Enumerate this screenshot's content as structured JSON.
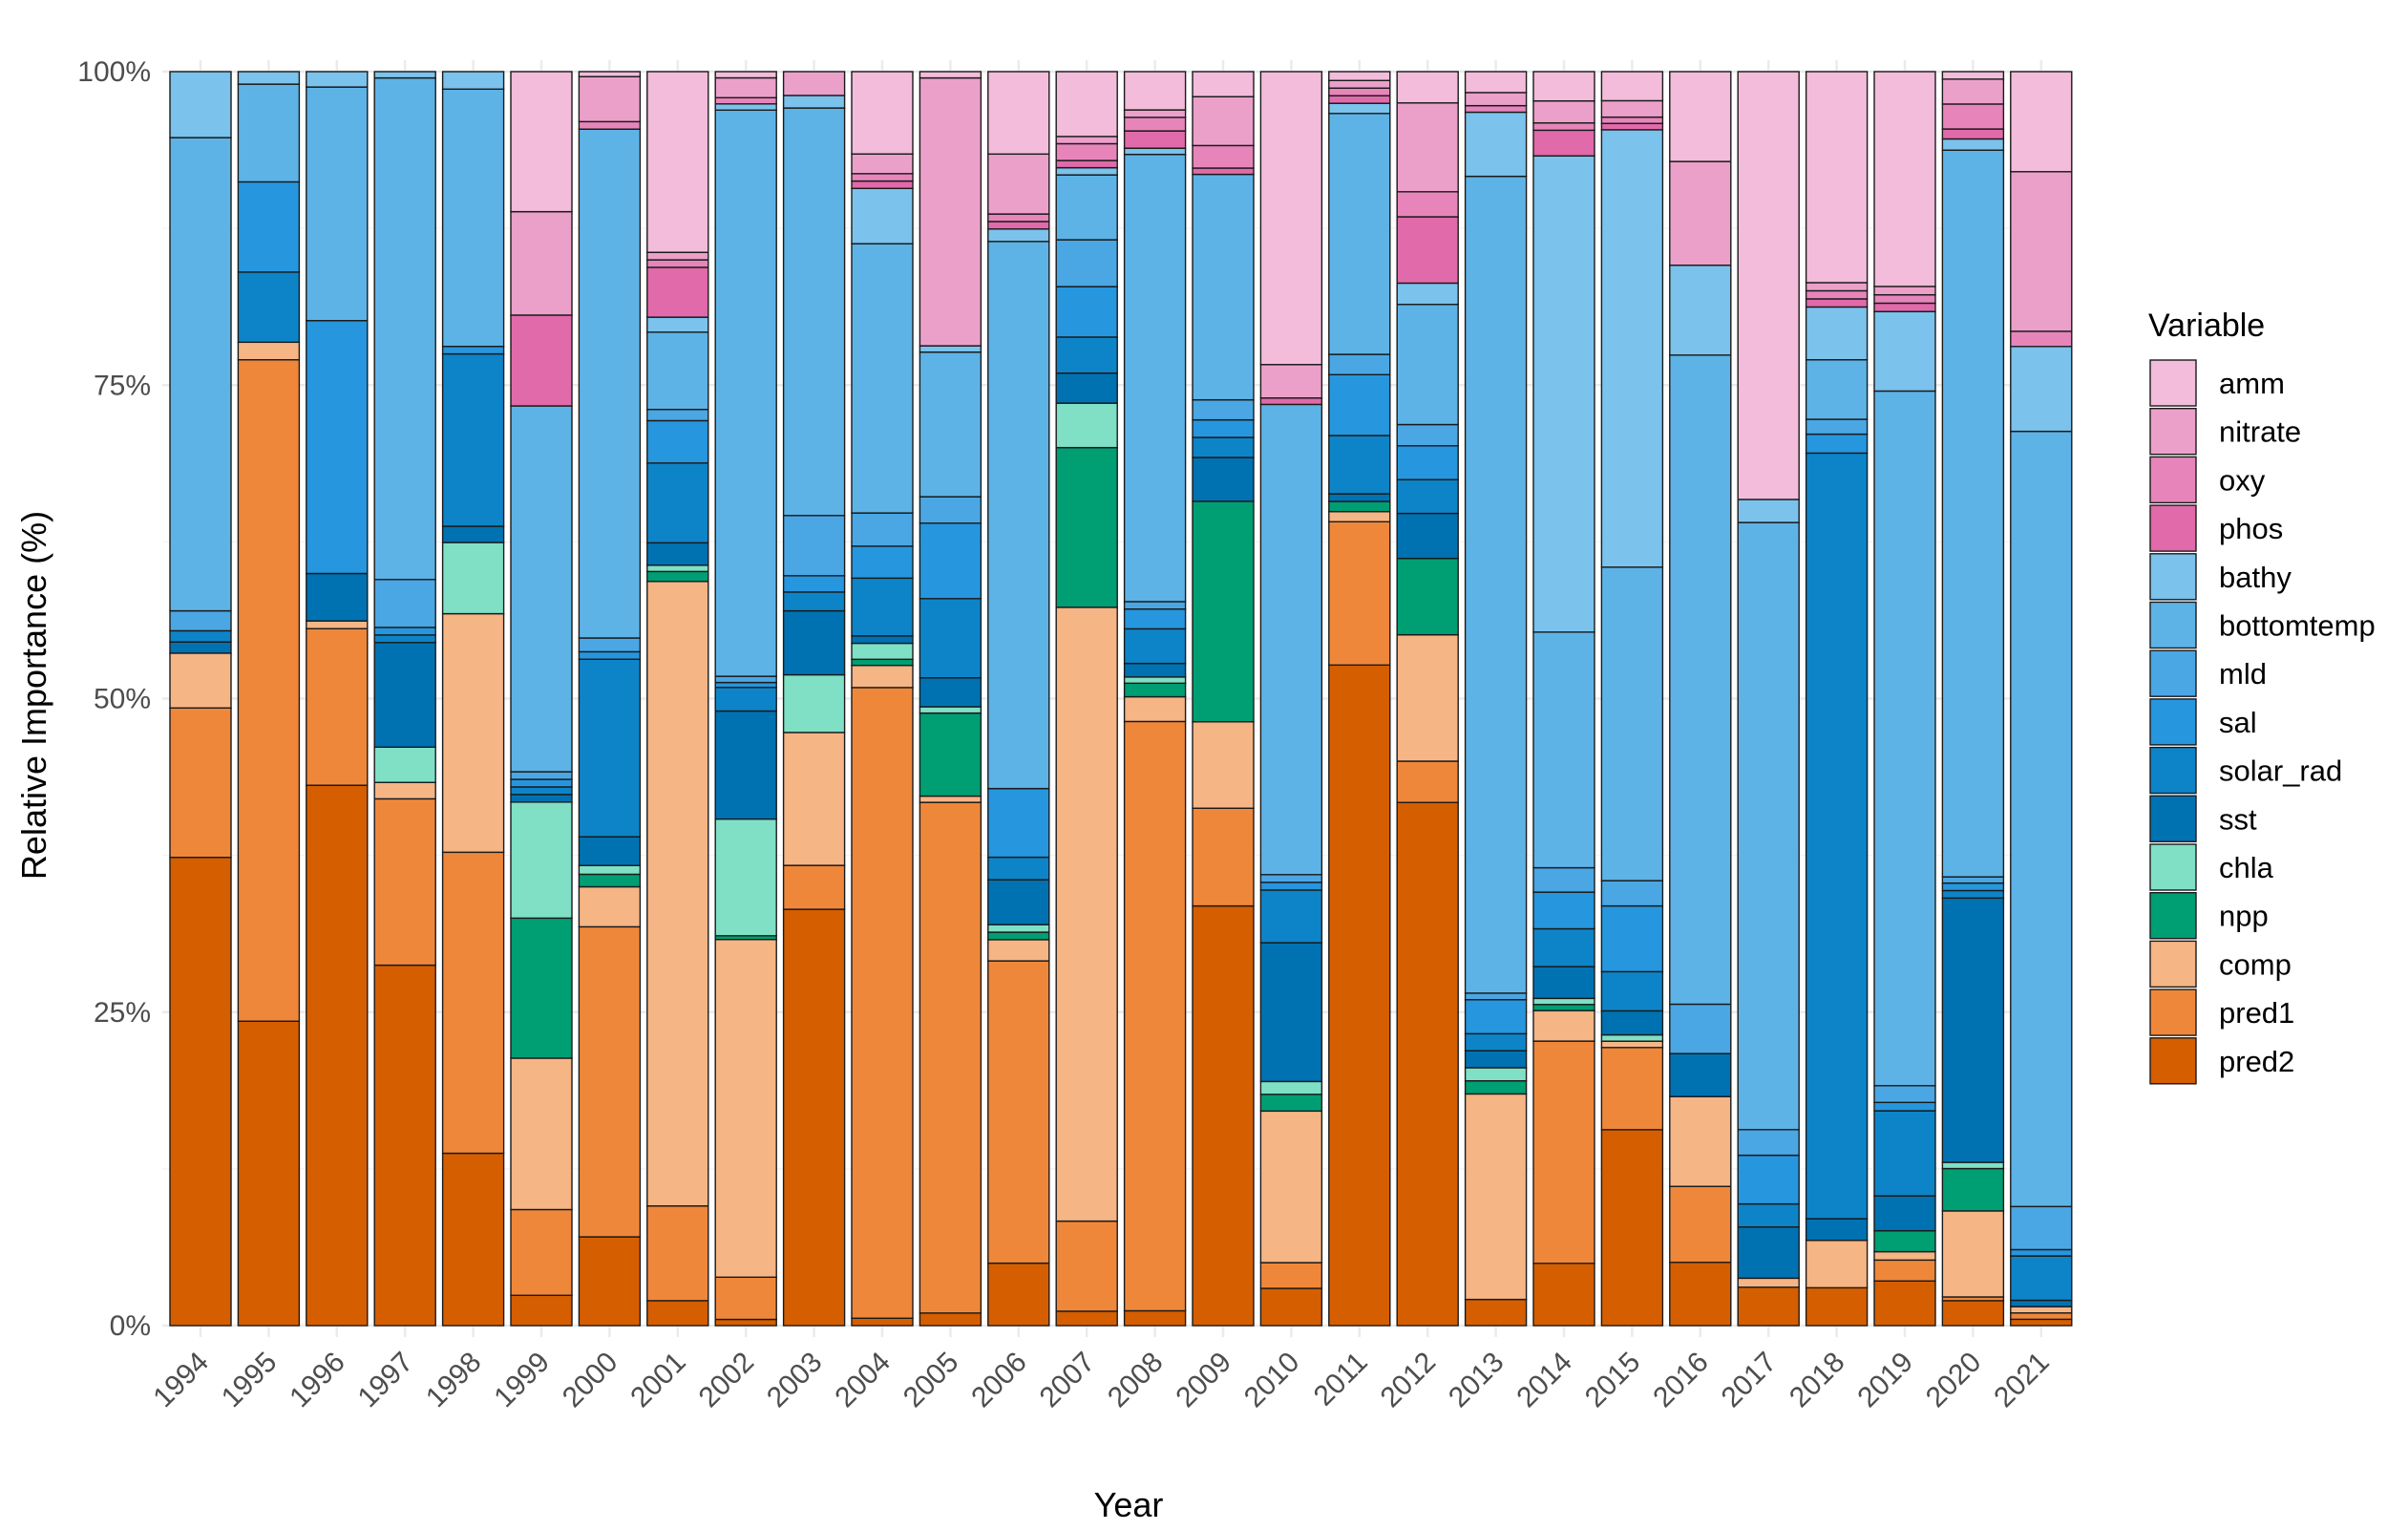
{
  "chart_data": {
    "type": "bar",
    "stacked": true,
    "normalized": true,
    "xlabel": "Year",
    "ylabel": "Relative Importance (%)",
    "ylim": [
      0,
      100
    ],
    "yticks": [
      "0%",
      "25%",
      "50%",
      "75%",
      "100%"
    ],
    "grid": true,
    "legend_position": "right",
    "legend_title": "Variable",
    "categories": [
      "1994",
      "1995",
      "1996",
      "1997",
      "1998",
      "1999",
      "2000",
      "2001",
      "2002",
      "2003",
      "2004",
      "2005",
      "2006",
      "2007",
      "2008",
      "2009",
      "2010",
      "2011",
      "2012",
      "2013",
      "2014",
      "2015",
      "2016",
      "2017",
      "2018",
      "2019",
      "2020",
      "2021"
    ],
    "series": [
      {
        "name": "pred2",
        "color": "#D55E00",
        "values": [
          37.6,
          24.3,
          42.1,
          28.6,
          13.8,
          2.4,
          7.1,
          2.0,
          0.5,
          33.2,
          0.6,
          1.0,
          5.0,
          1.2,
          1.2,
          33.5,
          2.9,
          52.1,
          41.8,
          2.0,
          5.1,
          15.5,
          5.0,
          3.0,
          2.8,
          3.2,
          2.0,
          0.5
        ]
      },
      {
        "name": "pred1",
        "color": "#EF873A",
        "values": [
          12.0,
          52.8,
          12.2,
          13.2,
          24.1,
          6.8,
          24.8,
          7.6,
          3.4,
          3.5,
          51.3,
          40.6,
          24.2,
          7.5,
          47.7,
          7.8,
          2.0,
          11.3,
          3.3,
          0.0,
          18.2,
          6.5,
          6.0,
          0.0,
          0.0,
          1.5,
          0.3,
          0.5
        ]
      },
      {
        "name": "comp",
        "color": "#F5B585",
        "values": [
          4.4,
          1.4,
          0.6,
          1.3,
          19.1,
          12.0,
          3.2,
          50.1,
          27.2,
          10.6,
          1.8,
          0.5,
          1.7,
          51.1,
          2.0,
          6.9,
          11.8,
          0.8,
          10.1,
          15.7,
          2.5,
          0.5,
          7.1,
          0.7,
          3.5,
          0.6,
          6.9,
          0.5
        ]
      },
      {
        "name": "npp",
        "color": "#009E73",
        "values": [
          0.0,
          0.0,
          0.0,
          0.0,
          0.0,
          11.1,
          1.0,
          0.8,
          0.3,
          0.0,
          0.5,
          6.6,
          0.6,
          13.3,
          1.1,
          17.6,
          1.3,
          0.8,
          6.1,
          1.0,
          0.5,
          0.0,
          0.0,
          0.0,
          0.0,
          1.5,
          3.4,
          0.0
        ]
      },
      {
        "name": "chla",
        "color": "#7FE0C5",
        "values": [
          0.0,
          0.0,
          0.0,
          2.8,
          5.7,
          9.2,
          0.7,
          0.5,
          9.4,
          4.6,
          1.3,
          0.5,
          0.6,
          3.7,
          0.5,
          0.0,
          1.0,
          0.0,
          0.0,
          1.0,
          0.5,
          0.5,
          0.0,
          0.0,
          0.0,
          0.0,
          0.5,
          0.0
        ]
      },
      {
        "name": "sst",
        "color": "#0072B2",
        "values": [
          0.9,
          0.0,
          3.7,
          8.3,
          1.3,
          0.6,
          2.3,
          1.8,
          8.7,
          5.1,
          0.6,
          2.3,
          3.6,
          2.5,
          1.1,
          3.5,
          10.8,
          0.6,
          3.6,
          1.3,
          2.6,
          1.9,
          3.4,
          4.0,
          1.6,
          2.5,
          21.2,
          0.5
        ]
      },
      {
        "name": "solar_rad",
        "color": "#0E84C8",
        "values": [
          0.9,
          5.6,
          0.0,
          0.6,
          13.8,
          0.6,
          14.2,
          6.4,
          1.9,
          1.5,
          4.7,
          6.3,
          1.8,
          3.0,
          2.8,
          1.6,
          4.1,
          4.6,
          2.7,
          1.3,
          3.1,
          3.1,
          0.0,
          1.8,
          56.6,
          6.1,
          0.6,
          3.5
        ]
      },
      {
        "name": "sal",
        "color": "#2696DE",
        "values": [
          0.0,
          7.2,
          19.7,
          0.6,
          0.6,
          0.6,
          0.6,
          3.4,
          0.4,
          1.3,
          2.6,
          6.0,
          5.5,
          4.2,
          1.6,
          1.4,
          0.6,
          4.8,
          2.7,
          2.6,
          3.0,
          5.2,
          0.0,
          3.8,
          1.4,
          0.6,
          0.6,
          0.5
        ]
      },
      {
        "name": "mld",
        "color": "#4AA7E4",
        "values": [
          1.6,
          0.0,
          0.0,
          3.8,
          0.0,
          0.6,
          1.1,
          0.9,
          0.5,
          4.8,
          2.7,
          2.1,
          0.0,
          3.9,
          0.6,
          1.6,
          0.6,
          1.6,
          1.7,
          0.5,
          2.0,
          2.0,
          3.9,
          2.0,
          1.1,
          1.2,
          0.5,
          3.4
        ]
      },
      {
        "name": "bottomtemp",
        "color": "#5EB3E6",
        "values": [
          38.0,
          7.8,
          18.2,
          39.8,
          20.6,
          29.0,
          40.7,
          6.2,
          45.6,
          32.5,
          21.9,
          11.5,
          43.8,
          5.4,
          36.2,
          18.0,
          36.6,
          19.0,
          9.6,
          62.4,
          19.3,
          24.8,
          51.3,
          47.4,
          4.4,
          49.8,
          58.3,
          61.2
        ]
      },
      {
        "name": "bathy",
        "color": "#7BC2EC",
        "values": [
          5.3,
          1.0,
          1.2,
          0.5,
          1.4,
          0.0,
          0.0,
          1.2,
          0.5,
          1.0,
          4.5,
          0.5,
          1.0,
          0.6,
          0.5,
          0.0,
          0.0,
          0.8,
          1.7,
          4.9,
          39.0,
          34.6,
          7.1,
          1.8,
          3.9,
          5.7,
          0.9,
          6.7
        ]
      },
      {
        "name": "phos",
        "color": "#E06AAA",
        "values": [
          0.0,
          0.0,
          0.0,
          0.0,
          0.0,
          7.2,
          0.0,
          4.0,
          0.0,
          0.0,
          0.6,
          0.0,
          0.6,
          0.6,
          1.4,
          0.5,
          0.5,
          0.6,
          5.3,
          0.0,
          2.1,
          0.5,
          0.0,
          0.0,
          0.6,
          0.6,
          0.8,
          0.0
        ]
      },
      {
        "name": "oxy",
        "color": "#E785BB",
        "values": [
          0.0,
          0.0,
          0.0,
          0.0,
          0.0,
          0.0,
          0.6,
          0.6,
          0.5,
          0.0,
          0.6,
          0.0,
          0.6,
          1.4,
          1.1,
          1.8,
          0.0,
          0.6,
          2.0,
          0.5,
          0.6,
          0.5,
          0.0,
          0.0,
          0.6,
          0.6,
          2.0,
          1.2
        ]
      },
      {
        "name": "nitrate",
        "color": "#EBA0CA",
        "values": [
          0.0,
          0.0,
          0.0,
          0.0,
          0.0,
          8.2,
          3.6,
          0.6,
          1.6,
          1.9,
          1.6,
          21.3,
          4.8,
          0.6,
          0.6,
          3.9,
          2.6,
          0.6,
          7.1,
          1.0,
          1.8,
          1.3,
          8.2,
          0.0,
          0.6,
          0.6,
          2.0,
          12.6
        ]
      },
      {
        "name": "amm",
        "color": "#F2BCDA",
        "values": [
          0.0,
          0.0,
          0.0,
          0.0,
          0.0,
          11.1,
          0.4,
          14.5,
          0.5,
          0.0,
          6.7,
          0.5,
          6.6,
          5.4,
          3.1,
          2.0,
          22.8,
          0.7,
          2.5,
          1.6,
          2.4,
          2.3,
          7.1,
          33.4,
          15.6,
          15.4,
          0.6,
          7.9
        ]
      }
    ]
  }
}
